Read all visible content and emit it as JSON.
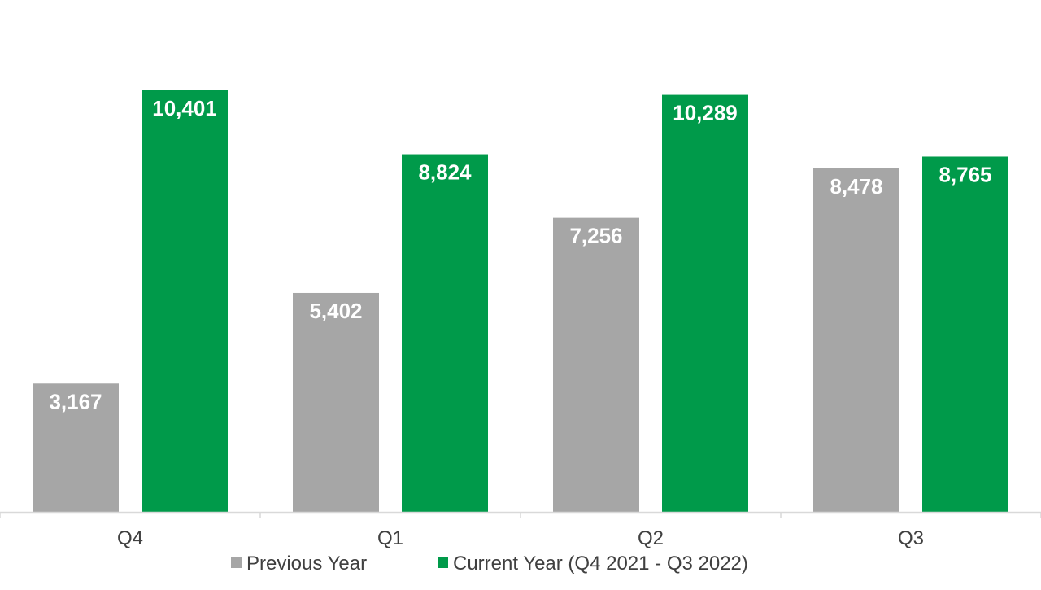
{
  "colors": {
    "previous": "#a6a6a6",
    "current": "#009a4a",
    "axis": "#d9d9d9",
    "text": "#404040",
    "bar_label": "#ffffff"
  },
  "chart_data": {
    "type": "bar",
    "title": "",
    "xlabel": "",
    "ylabel": "",
    "categories": [
      "Q4",
      "Q1",
      "Q2",
      "Q3"
    ],
    "ylim": [
      0,
      11500
    ],
    "grid": false,
    "legend_position": "bottom",
    "series": [
      {
        "name": "Previous Year",
        "color_key": "previous",
        "values": [
          3167,
          5402,
          7256,
          8478
        ],
        "labels": [
          "3,167",
          "5,402",
          "7,256",
          "8,478"
        ]
      },
      {
        "name": "Current Year (Q4 2021 - Q3 2022)",
        "color_key": "current",
        "values": [
          10401,
          8824,
          10289,
          8765
        ],
        "labels": [
          "10,401",
          "8,824",
          "10,289",
          "8,765"
        ]
      }
    ]
  }
}
